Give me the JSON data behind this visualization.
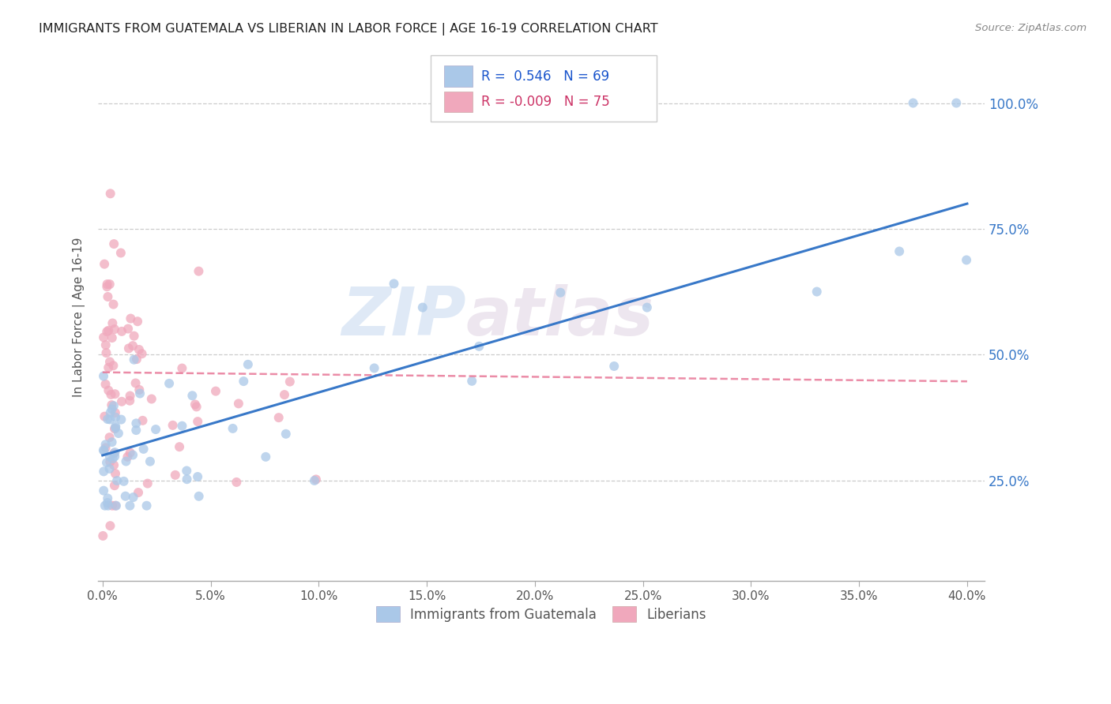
{
  "title": "IMMIGRANTS FROM GUATEMALA VS LIBERIAN IN LABOR FORCE | AGE 16-19 CORRELATION CHART",
  "source": "Source: ZipAtlas.com",
  "ylabel": "In Labor Force | Age 16-19",
  "legend_label1": "Immigrants from Guatemala",
  "legend_label2": "Liberians",
  "r1": "0.546",
  "n1": "69",
  "r2": "-0.009",
  "n2": "75",
  "color_blue": "#aac8e8",
  "color_pink": "#f0a8bc",
  "line_blue": "#3878c8",
  "line_pink": "#e87898",
  "watermark_zip": "ZIP",
  "watermark_atlas": "atlas",
  "xlim_min": -0.002,
  "xlim_max": 0.408,
  "ylim_min": 0.05,
  "ylim_max": 1.1,
  "ytick_vals": [
    0.25,
    0.5,
    0.75,
    1.0
  ],
  "ytick_labels": [
    "25.0%",
    "50.0%",
    "75.0%",
    "100.0%"
  ],
  "xtick_vals": [
    0.0,
    0.05,
    0.1,
    0.15,
    0.2,
    0.25,
    0.3,
    0.35,
    0.4
  ],
  "xtick_labels": [
    "0.0%",
    "5.0%",
    "10.0%",
    "15.0%",
    "20.0%",
    "25.0%",
    "30.0%",
    "35.0%",
    "40.0%"
  ],
  "guat_trend": [
    0.3,
    0.8
  ],
  "lib_trend": [
    0.465,
    0.447
  ],
  "ref_hline_y": 0.465,
  "grid_hlines": [
    0.25,
    0.5,
    0.75,
    1.0
  ],
  "grid_color": "#cccccc",
  "ref_line_color": "#ddbbcc"
}
